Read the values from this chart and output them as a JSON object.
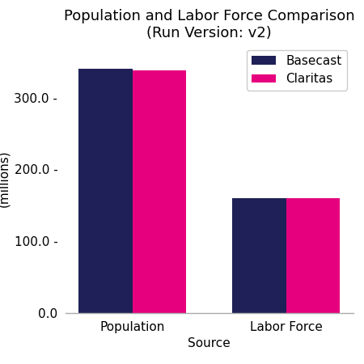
{
  "title": "Population and Labor Force Comparison\n(Run Version: v2)",
  "categories": [
    "Population",
    "Labor Force"
  ],
  "series": [
    {
      "label": "Basecast",
      "color": "#1f2057",
      "values": [
        340,
        160
      ]
    },
    {
      "label": "Claritas",
      "color": "#e6007e",
      "values": [
        338,
        160
      ]
    }
  ],
  "xlabel": "Source",
  "ylabel": "Population\n(millions)",
  "ylim": [
    0,
    375
  ],
  "ytick_vals": [
    0.0,
    100.0,
    200.0,
    300.0
  ],
  "ytick_labels": [
    "0.0",
    "100.0 -",
    "200.0 -",
    "300.0 -"
  ],
  "bar_width": 0.35,
  "title_fontsize": 13,
  "axis_label_fontsize": 11,
  "tick_fontsize": 11,
  "legend_fontsize": 11,
  "background_color": "#ffffff"
}
